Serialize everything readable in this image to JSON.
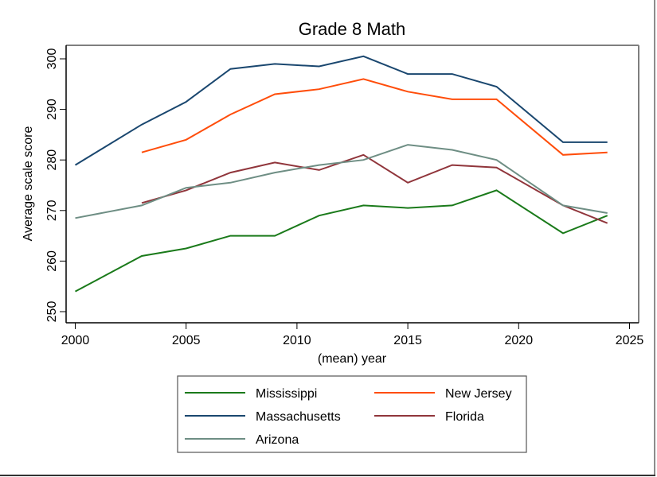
{
  "chart_data": {
    "type": "line",
    "title": "Grade 8 Math",
    "xlabel": "(mean) year",
    "ylabel": "Average scale score",
    "xlim": [
      2000,
      2025
    ],
    "ylim": [
      250,
      300
    ],
    "xticks": [
      2000,
      2005,
      2010,
      2015,
      2020,
      2025
    ],
    "yticks": [
      250,
      260,
      270,
      280,
      290,
      300
    ],
    "grid": false,
    "legend_position": "bottom",
    "series": [
      {
        "name": "Mississippi",
        "color": "#1a7a1a",
        "x": [
          2000,
          2003,
          2005,
          2007,
          2009,
          2011,
          2013,
          2015,
          2017,
          2019,
          2022,
          2024
        ],
        "values": [
          254,
          261,
          262.5,
          265,
          265,
          269,
          271,
          270.5,
          271,
          274,
          265.5,
          269
        ]
      },
      {
        "name": "New Jersey",
        "color": "#ff4d0a",
        "x": [
          2003,
          2005,
          2007,
          2009,
          2011,
          2013,
          2015,
          2017,
          2019,
          2022,
          2024
        ],
        "values": [
          281.5,
          284,
          289,
          293,
          294,
          296,
          293.5,
          292,
          292,
          281,
          281.5
        ]
      },
      {
        "name": "Massachusetts",
        "color": "#1a476f",
        "x": [
          2000,
          2003,
          2005,
          2007,
          2009,
          2011,
          2013,
          2015,
          2017,
          2019,
          2022,
          2024
        ],
        "values": [
          279,
          287,
          291.5,
          298,
          299,
          298.5,
          300.5,
          297,
          297,
          294.5,
          283.5,
          283.5
        ]
      },
      {
        "name": "Florida",
        "color": "#90353b",
        "x": [
          2003,
          2005,
          2007,
          2009,
          2011,
          2013,
          2015,
          2017,
          2019,
          2022,
          2024
        ],
        "values": [
          271.5,
          274,
          277.5,
          279.5,
          278,
          281,
          275.5,
          279,
          278.5,
          271,
          267.5
        ]
      },
      {
        "name": "Arizona",
        "color": "#6e8e84",
        "x": [
          2000,
          2003,
          2005,
          2007,
          2009,
          2011,
          2013,
          2015,
          2017,
          2019,
          2022,
          2024
        ],
        "values": [
          268.5,
          271,
          274.5,
          275.5,
          277.5,
          279,
          280,
          283,
          282,
          280,
          271,
          269.5
        ]
      }
    ]
  }
}
